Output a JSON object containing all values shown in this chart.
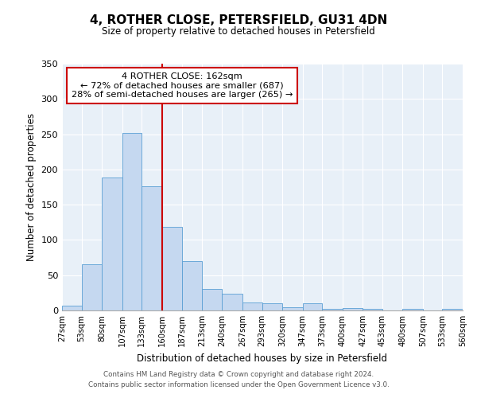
{
  "title": "4, ROTHER CLOSE, PETERSFIELD, GU31 4DN",
  "subtitle": "Size of property relative to detached houses in Petersfield",
  "xlabel": "Distribution of detached houses by size in Petersfield",
  "ylabel": "Number of detached properties",
  "bar_color": "#c5d8f0",
  "bar_edge_color": "#5a9fd4",
  "bg_color": "#e8f0f8",
  "vline_x": 160,
  "vline_color": "#cc0000",
  "annotation_title": "4 ROTHER CLOSE: 162sqm",
  "annotation_line1": "← 72% of detached houses are smaller (687)",
  "annotation_line2": "28% of semi-detached houses are larger (265) →",
  "annotation_box_color": "#cc0000",
  "bin_edges": [
    27,
    53,
    80,
    107,
    133,
    160,
    187,
    213,
    240,
    267,
    293,
    320,
    347,
    373,
    400,
    427,
    453,
    480,
    507,
    533,
    560
  ],
  "bin_counts": [
    7,
    66,
    188,
    252,
    176,
    119,
    70,
    31,
    24,
    11,
    10,
    4,
    10,
    2,
    3,
    2,
    0,
    2,
    0,
    2
  ],
  "tick_labels": [
    "27sqm",
    "53sqm",
    "80sqm",
    "107sqm",
    "133sqm",
    "160sqm",
    "187sqm",
    "213sqm",
    "240sqm",
    "267sqm",
    "293sqm",
    "320sqm",
    "347sqm",
    "373sqm",
    "400sqm",
    "427sqm",
    "453sqm",
    "480sqm",
    "507sqm",
    "533sqm",
    "560sqm"
  ],
  "ylim": [
    0,
    350
  ],
  "yticks": [
    0,
    50,
    100,
    150,
    200,
    250,
    300,
    350
  ],
  "footer_line1": "Contains HM Land Registry data © Crown copyright and database right 2024.",
  "footer_line2": "Contains public sector information licensed under the Open Government Licence v3.0."
}
